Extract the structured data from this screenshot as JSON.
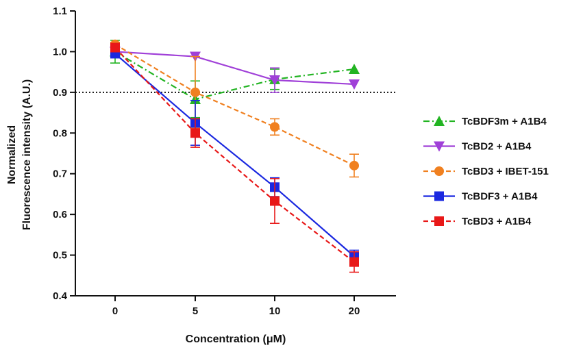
{
  "chart_data": {
    "type": "line",
    "title": "",
    "xlabel": "Concentration (μM)",
    "ylabel_lines": [
      "Normalized",
      "Fluorescence intensity (A.U.)"
    ],
    "categories": [
      "0",
      "5",
      "10",
      "20"
    ],
    "y_ticks": [
      "0.4",
      "0.5",
      "0.6",
      "0.7",
      "0.8",
      "0.9",
      "1.0",
      "1.1"
    ],
    "ylim": [
      0.4,
      1.1
    ],
    "threshold": 0.9,
    "legend_position": "right",
    "series": [
      {
        "name": "TcBDF3m + A1B4",
        "color": "#22b422",
        "marker": "triangle-up",
        "dash": "dash-dot",
        "values": [
          1.0,
          0.883,
          0.932,
          0.957
        ],
        "errors": [
          0.028,
          0.045,
          0.025,
          0.0
        ]
      },
      {
        "name": "TcBD2 + A1B4",
        "color": "#a040d8",
        "marker": "triangle-down",
        "dash": "solid",
        "values": [
          1.0,
          0.988,
          0.93,
          0.92
        ],
        "errors": [
          0.0,
          0.0,
          0.03,
          0.0
        ]
      },
      {
        "name": "TcBD3 + IBET-151",
        "color": "#f08020",
        "marker": "circle",
        "dash": "dash",
        "values": [
          1.018,
          0.9,
          0.815,
          0.72
        ],
        "errors": [
          0.005,
          0.088,
          0.02,
          0.028
        ]
      },
      {
        "name": "TcBDF3 + A1B4",
        "color": "#1a28e0",
        "marker": "square",
        "dash": "solid",
        "values": [
          0.995,
          0.825,
          0.667,
          0.497
        ],
        "errors": [
          0.0,
          0.055,
          0.023,
          0.015
        ]
      },
      {
        "name": "TcBD3 + A1B4",
        "color": "#e81818",
        "marker": "square",
        "dash": "dash",
        "values": [
          1.01,
          0.8,
          0.633,
          0.483
        ],
        "errors": [
          0.0,
          0.035,
          0.055,
          0.025
        ]
      }
    ]
  }
}
